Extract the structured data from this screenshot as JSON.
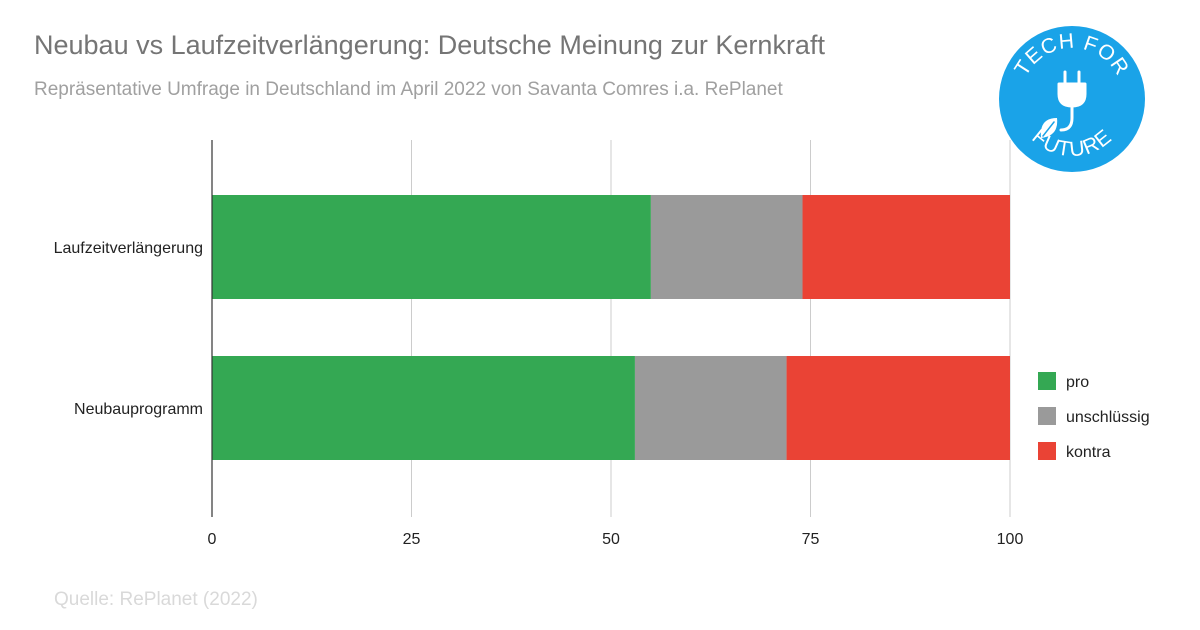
{
  "header": {
    "title": "Neubau vs Laufzeitverlängerung: Deutsche Meinung zur Kernkraft",
    "subtitle": "Repräsentative Umfrage in Deutschland im April 2022 von Savanta Comres i.a. RePlanet"
  },
  "footer": {
    "source": "Quelle: RePlanet (2022)"
  },
  "logo": {
    "top_text": "TECH FOR",
    "bottom_text": "FUTURE",
    "color": "#1aa3e8",
    "icon": "plug-leaf-icon"
  },
  "chart_data": {
    "type": "bar",
    "orientation": "horizontal",
    "stacked": true,
    "title": "Neubau vs Laufzeitverlängerung: Deutsche Meinung zur Kernkraft",
    "subtitle": "Repräsentative Umfrage in Deutschland im April 2022 von Savanta Comres i.a. RePlanet",
    "xlabel": "",
    "ylabel": "",
    "categories": [
      "Laufzeitverlängerung",
      "Neubauprogramm"
    ],
    "series": [
      {
        "name": "pro",
        "color": "#34a853",
        "values": [
          55,
          53
        ]
      },
      {
        "name": "unschlüssig",
        "color": "#9a9a9a",
        "values": [
          19,
          19
        ]
      },
      {
        "name": "kontra",
        "color": "#ea4335",
        "values": [
          26,
          28
        ]
      }
    ],
    "xlim": [
      0,
      100
    ],
    "xticks": [
      "0",
      "25",
      "50",
      "75",
      "100"
    ],
    "grid": true,
    "legend_position": "right"
  }
}
